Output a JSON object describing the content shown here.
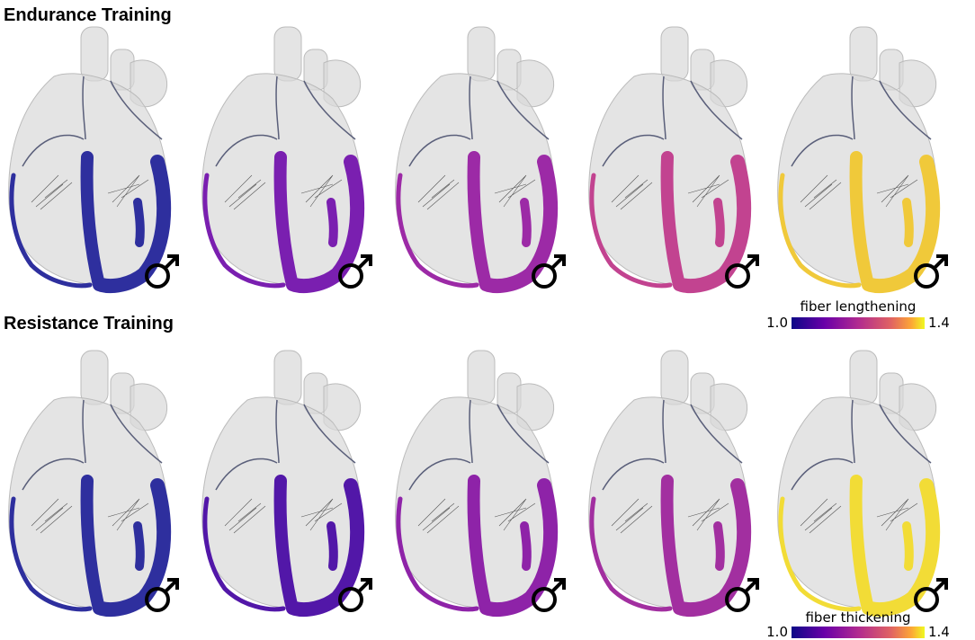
{
  "rows": [
    {
      "title": "Endurance Training"
    },
    {
      "title": "Resistance Training"
    }
  ],
  "colorbars": [
    {
      "label": "fiber lengthening",
      "ticks": [
        {
          "value": 1.0,
          "label": "1.0"
        },
        {
          "value": 1.4,
          "label": "1.4"
        }
      ]
    },
    {
      "label": "fiber thickening",
      "ticks": [
        {
          "value": 1.0,
          "label": "1.0"
        },
        {
          "value": 1.4,
          "label": "1.4"
        }
      ]
    }
  ]
}
